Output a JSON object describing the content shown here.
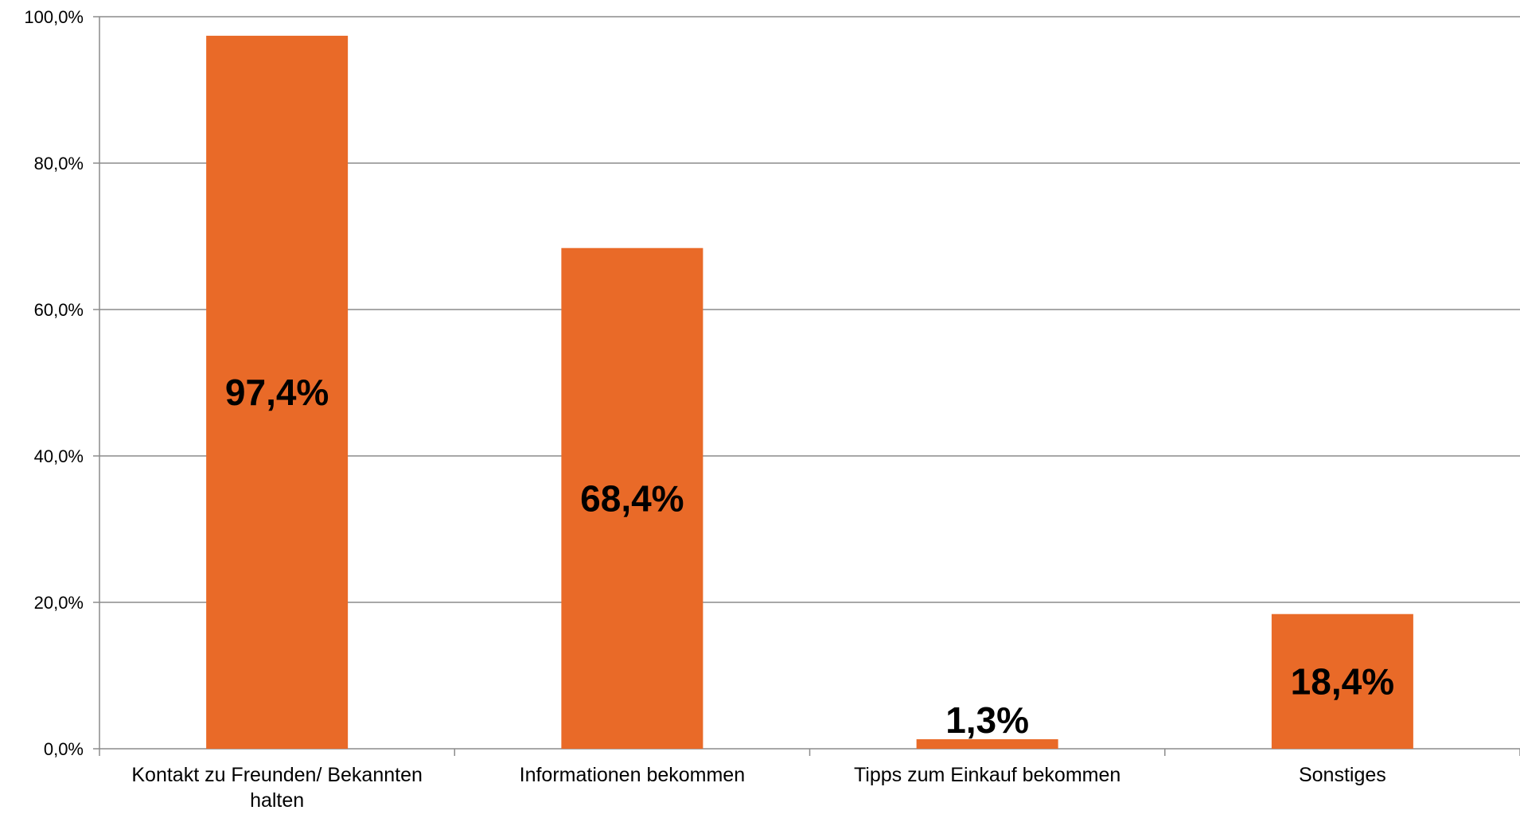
{
  "chart_data": {
    "type": "bar",
    "categories": [
      [
        "Kontakt zu Freunden/ Bekannten",
        "halten"
      ],
      [
        "Informationen bekommen"
      ],
      [
        "Tipps zum Einkauf bekommen"
      ],
      [
        "Sonstiges"
      ]
    ],
    "values": [
      97.4,
      68.4,
      1.3,
      18.4
    ],
    "data_labels": [
      "97,4%",
      "68,4%",
      "1,3%",
      "18,4%"
    ],
    "yticks": [
      0,
      20,
      40,
      60,
      80,
      100
    ],
    "ytick_labels": [
      "0,0%",
      "20,0%",
      "40,0%",
      "60,0%",
      "80,0%",
      "100,0%"
    ],
    "ylim": [
      0,
      100
    ],
    "grid": true,
    "legend": "none",
    "colors": {
      "bar": "#E96A28",
      "grid": "#8C8C8C",
      "axis": "#8C8C8C",
      "text": "#000000"
    }
  }
}
